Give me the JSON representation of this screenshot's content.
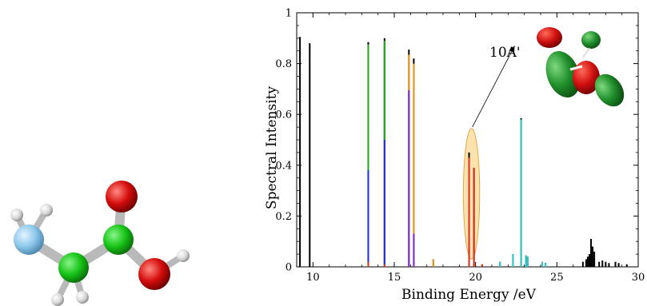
{
  "chart_data": {
    "type": "bar",
    "xlabel": "Binding Energy /eV",
    "ylabel": "Spectral Intensity",
    "xlim": [
      9,
      30
    ],
    "ylim": [
      0,
      1
    ],
    "x_ticks": [
      10,
      15,
      20,
      25,
      30
    ],
    "y_ticks": [
      0,
      0.2,
      0.4,
      0.6,
      0.8,
      1
    ],
    "x_tick_labels": [
      "10",
      "15",
      "20",
      "25",
      "30"
    ],
    "y_tick_labels": [
      "0",
      "0.2",
      "0.4",
      "0.6",
      "0.8",
      "1"
    ],
    "colors": {
      "total": "#000000",
      "green": "#22aa22",
      "blue": "#2233dd",
      "orange": "#f0a020",
      "purple": "#8833cc",
      "cyan": "#33cccc",
      "red": "#dd3322",
      "highlight_fill": "#fbe3b0",
      "highlight_stroke": "#e8a640"
    },
    "lines": [
      {
        "x": 9.2,
        "total": 0.905,
        "segments": []
      },
      {
        "x": 9.8,
        "total": 0.88,
        "segments": []
      },
      {
        "x": 13.4,
        "total": 0.885,
        "segments": [
          {
            "color": "red",
            "from": 0,
            "to": 0.02
          },
          {
            "color": "blue",
            "from": 0.02,
            "to": 0.38
          },
          {
            "color": "green",
            "from": 0.38,
            "to": 0.875
          }
        ]
      },
      {
        "x": 14.4,
        "total": 0.9,
        "segments": [
          {
            "color": "red",
            "from": 0,
            "to": 0.01
          },
          {
            "color": "blue",
            "from": 0.01,
            "to": 0.5
          },
          {
            "color": "green",
            "from": 0.5,
            "to": 0.89
          }
        ]
      },
      {
        "x": 15.9,
        "total": 0.855,
        "segments": [
          {
            "color": "purple",
            "from": 0,
            "to": 0.695
          },
          {
            "color": "orange",
            "from": 0.695,
            "to": 0.835
          }
        ]
      },
      {
        "x": 16.2,
        "total": 0.82,
        "segments": [
          {
            "color": "purple",
            "from": 0,
            "to": 0.13
          },
          {
            "color": "orange",
            "from": 0.13,
            "to": 0.8
          }
        ]
      },
      {
        "x": 17.4,
        "total": 0.03,
        "segments": [
          {
            "color": "orange",
            "from": 0,
            "to": 0.03
          }
        ]
      },
      {
        "x": 19.6,
        "total": 0.45,
        "segments": [
          {
            "color": "red",
            "from": 0,
            "to": 0.43
          }
        ]
      },
      {
        "x": 19.9,
        "total": 0.39,
        "segments": [
          {
            "color": "red",
            "from": 0,
            "to": 0.39
          }
        ]
      },
      {
        "x": 20.4,
        "total": 0.01,
        "segments": [
          {
            "color": "red",
            "from": 0,
            "to": 0.01
          }
        ]
      },
      {
        "x": 21.5,
        "total": 0.02,
        "segments": [
          {
            "color": "cyan",
            "from": 0,
            "to": 0.02
          }
        ]
      },
      {
        "x": 22.3,
        "total": 0.05,
        "segments": [
          {
            "color": "cyan",
            "from": 0,
            "to": 0.05
          }
        ]
      },
      {
        "x": 22.8,
        "total": 0.585,
        "segments": [
          {
            "color": "cyan",
            "from": 0,
            "to": 0.58
          }
        ]
      },
      {
        "x": 23.1,
        "total": 0.045,
        "segments": [
          {
            "color": "cyan",
            "from": 0,
            "to": 0.045
          }
        ]
      },
      {
        "x": 23.2,
        "total": 0.04,
        "segments": [
          {
            "color": "cyan",
            "from": 0,
            "to": 0.04
          }
        ]
      },
      {
        "x": 24.1,
        "total": 0.02,
        "segments": [
          {
            "color": "cyan",
            "from": 0,
            "to": 0.02
          }
        ]
      },
      {
        "x": 24.3,
        "total": 0.015,
        "segments": [
          {
            "color": "cyan",
            "from": 0,
            "to": 0.015
          }
        ]
      },
      {
        "x": 26.6,
        "total": 0.02,
        "segments": []
      },
      {
        "x": 26.8,
        "total": 0.03,
        "segments": []
      },
      {
        "x": 26.9,
        "total": 0.04,
        "segments": []
      },
      {
        "x": 27.0,
        "total": 0.05,
        "segments": []
      },
      {
        "x": 27.1,
        "total": 0.11,
        "segments": []
      },
      {
        "x": 27.2,
        "total": 0.08,
        "segments": []
      },
      {
        "x": 27.3,
        "total": 0.06,
        "segments": []
      },
      {
        "x": 27.6,
        "total": 0.02,
        "segments": []
      },
      {
        "x": 27.8,
        "total": 0.025,
        "segments": []
      },
      {
        "x": 28.0,
        "total": 0.02,
        "segments": []
      },
      {
        "x": 28.2,
        "total": 0.015,
        "segments": []
      },
      {
        "x": 28.6,
        "total": 0.02,
        "segments": []
      },
      {
        "x": 28.8,
        "total": 0.015,
        "segments": []
      },
      {
        "x": 29.3,
        "total": 0.01,
        "segments": []
      }
    ],
    "highlight": {
      "x_center": 19.75,
      "x_halfwidth": 0.5,
      "y_low": 0.03,
      "y_high": 0.545
    },
    "annotation": {
      "text": "10A'",
      "arrow_from": [
        19.8,
        0.55
      ],
      "arrow_to": [
        22.4,
        0.87
      ]
    }
  }
}
